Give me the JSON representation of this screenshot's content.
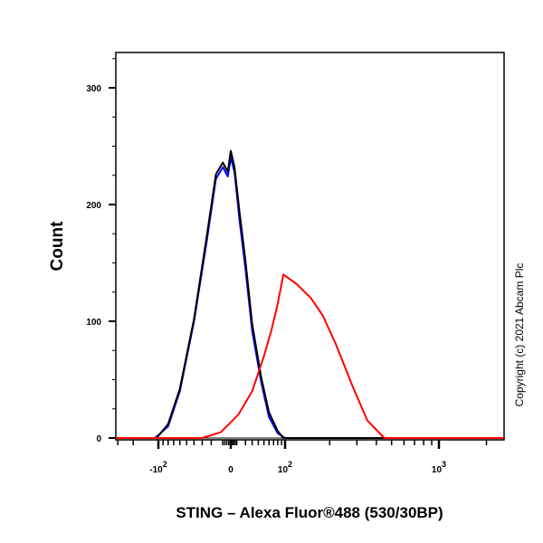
{
  "chart_data": {
    "type": "line",
    "title": "",
    "xlabel": "STING – Alexa Fluor®488 (530/30BP)",
    "ylabel": "Count",
    "ylim": [
      0,
      330
    ],
    "x_scale": "biexponential",
    "y_ticks": [
      "0",
      "100",
      "200",
      "300"
    ],
    "x_ticks": [
      {
        "value": -100,
        "label": "-10",
        "sup": "2"
      },
      {
        "value": 0,
        "label": "0",
        "sup": ""
      },
      {
        "value": 100,
        "label": "10",
        "sup": "2"
      },
      {
        "value": 1000,
        "label": "10",
        "sup": "3"
      }
    ],
    "grid": false,
    "series": [
      {
        "color": "#0000ff",
        "x": [
          -110,
          -80,
          -60,
          -40,
          -25,
          -15,
          -8,
          -3,
          0,
          5,
          12,
          20,
          30,
          45,
          60,
          80,
          100
        ],
        "y": [
          0,
          10,
          40,
          100,
          168,
          222,
          232,
          224,
          240,
          228,
          185,
          145,
          92,
          48,
          18,
          4,
          0
        ]
      },
      {
        "color": "#000000",
        "x": [
          -105,
          -80,
          -60,
          -40,
          -25,
          -15,
          -8,
          -3,
          0,
          5,
          12,
          20,
          30,
          45,
          60,
          80,
          95
        ],
        "y": [
          0,
          12,
          42,
          102,
          172,
          226,
          236,
          228,
          246,
          232,
          192,
          152,
          98,
          52,
          22,
          6,
          0
        ]
      },
      {
        "color": "#ff0000",
        "x": [
          -30,
          -10,
          10,
          30,
          50,
          65,
          80,
          95,
          120,
          150,
          180,
          220,
          280,
          350,
          450
        ],
        "y": [
          0,
          5,
          20,
          40,
          70,
          92,
          115,
          140,
          132,
          120,
          105,
          80,
          45,
          15,
          0
        ]
      }
    ],
    "annotations": [
      "Copyright (c) 2021 Abcam Plc"
    ]
  }
}
